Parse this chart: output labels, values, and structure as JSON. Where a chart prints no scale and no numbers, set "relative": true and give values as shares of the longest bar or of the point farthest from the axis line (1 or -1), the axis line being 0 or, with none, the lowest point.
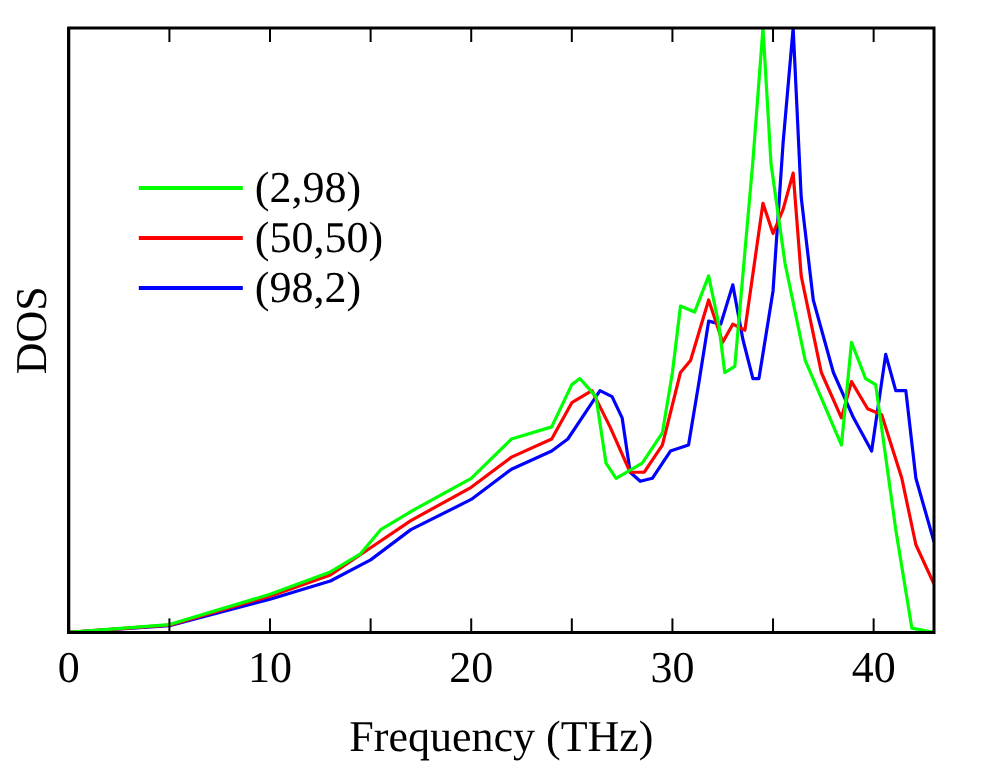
{
  "chart_data": {
    "type": "line",
    "xlabel": "Frequency (THz)",
    "ylabel": "DOS",
    "relative": true,
    "xlim": [
      0,
      43
    ],
    "xticks": [
      0,
      {
        "value": 5,
        "label": null
      },
      10,
      {
        "value": 15,
        "label": null
      },
      20,
      {
        "value": 25,
        "label": null
      },
      30,
      {
        "value": 35,
        "label": null
      },
      40
    ],
    "grid": false,
    "legend": "top left",
    "marker": "none",
    "line_style": "solid",
    "series": [
      {
        "name": "(2,98)",
        "color": "#00ff00",
        "x": [
          0,
          5,
          10,
          13,
          14.5,
          15.5,
          17,
          20,
          22,
          24,
          25,
          25.4,
          26.2,
          26.7,
          27.2,
          28.5,
          29.5,
          30,
          30.4,
          31.1,
          31.8,
          32.3,
          32.6,
          33.1,
          34,
          34.5,
          34.9,
          35.6,
          36.6,
          38.4,
          38.9,
          39.6,
          40.1,
          41.1,
          41.9,
          43
        ],
        "values": [
          0,
          0.013,
          0.063,
          0.1,
          0.13,
          0.17,
          0.2,
          0.255,
          0.32,
          0.34,
          0.41,
          0.42,
          0.39,
          0.28,
          0.255,
          0.28,
          0.33,
          0.43,
          0.54,
          0.53,
          0.59,
          0.51,
          0.43,
          0.44,
          0.78,
          1,
          0.775,
          0.61,
          0.45,
          0.31,
          0.48,
          0.42,
          0.41,
          0.17,
          0.007,
          0
        ]
      },
      {
        "name": "(50,50)",
        "color": "#ff0000",
        "x": [
          0,
          5,
          10,
          13,
          15,
          17,
          20,
          22,
          24,
          25,
          25.5,
          26,
          26.9,
          27.9,
          28.6,
          29.5,
          30.4,
          30.9,
          31.8,
          32.5,
          33,
          33.6,
          34.5,
          35,
          35.5,
          36,
          36.4,
          37.4,
          38.4,
          38.9,
          39.7,
          40.4,
          41.4,
          42.1,
          43
        ],
        "values": [
          0,
          0.012,
          0.06,
          0.095,
          0.14,
          0.185,
          0.24,
          0.29,
          0.32,
          0.38,
          0.39,
          0.4,
          0.34,
          0.265,
          0.265,
          0.31,
          0.43,
          0.45,
          0.55,
          0.48,
          0.51,
          0.5,
          0.71,
          0.66,
          0.7,
          0.76,
          0.59,
          0.43,
          0.355,
          0.415,
          0.37,
          0.36,
          0.255,
          0.145,
          0.08
        ]
      },
      {
        "name": "(98,2)",
        "color": "#0000ff",
        "x": [
          0,
          5,
          10,
          13,
          15,
          17,
          20,
          22,
          24,
          24.8,
          25.7,
          26.4,
          27,
          27.5,
          27.9,
          28.4,
          29,
          29.9,
          30.8,
          31.3,
          31.8,
          32.4,
          33,
          33.5,
          34,
          34.3,
          35,
          35.5,
          36,
          36.4,
          37,
          38,
          39,
          39.9,
          40.6,
          41.1,
          41.6,
          42.1,
          43
        ],
        "values": [
          0,
          0.011,
          0.055,
          0.085,
          0.12,
          0.17,
          0.22,
          0.27,
          0.3,
          0.32,
          0.365,
          0.4,
          0.39,
          0.355,
          0.265,
          0.25,
          0.255,
          0.3,
          0.31,
          0.41,
          0.515,
          0.51,
          0.575,
          0.485,
          0.42,
          0.42,
          0.565,
          0.81,
          1,
          0.72,
          0.55,
          0.43,
          0.355,
          0.3,
          0.46,
          0.4,
          0.4,
          0.255,
          0.15
        ]
      }
    ]
  }
}
